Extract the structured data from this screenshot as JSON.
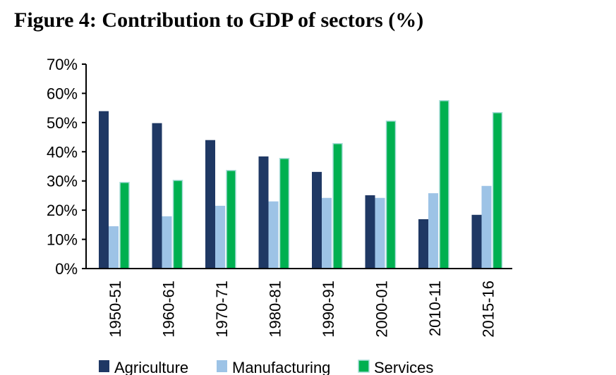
{
  "chart_data": {
    "type": "bar",
    "title": "Figure 4: Contribution to GDP of sectors (%)",
    "xlabel": "",
    "ylabel": "",
    "ylim": [
      0,
      70
    ],
    "yticks": [
      "0%",
      "10%",
      "20%",
      "30%",
      "40%",
      "50%",
      "60%",
      "70%"
    ],
    "grid": false,
    "legend": "bottom",
    "categories": [
      "1950-51",
      "1960-61",
      "1970-71",
      "1980-81",
      "1990-91",
      "2000-01",
      "2010-11",
      "2015-16"
    ],
    "series": [
      {
        "name": "Agriculture",
        "color": "#1F3864",
        "values": [
          53.9,
          49.8,
          44.0,
          38.4,
          33.1,
          25.1,
          16.9,
          18.4
        ]
      },
      {
        "name": "Manufacturing",
        "color": "#9DC3E6",
        "values": [
          14.5,
          17.9,
          21.5,
          23.0,
          24.2,
          24.2,
          25.8,
          28.3
        ]
      },
      {
        "name": "Services",
        "color": "#00B050",
        "values": [
          29.5,
          30.2,
          33.6,
          37.7,
          42.8,
          50.5,
          57.5,
          53.4
        ]
      }
    ]
  }
}
